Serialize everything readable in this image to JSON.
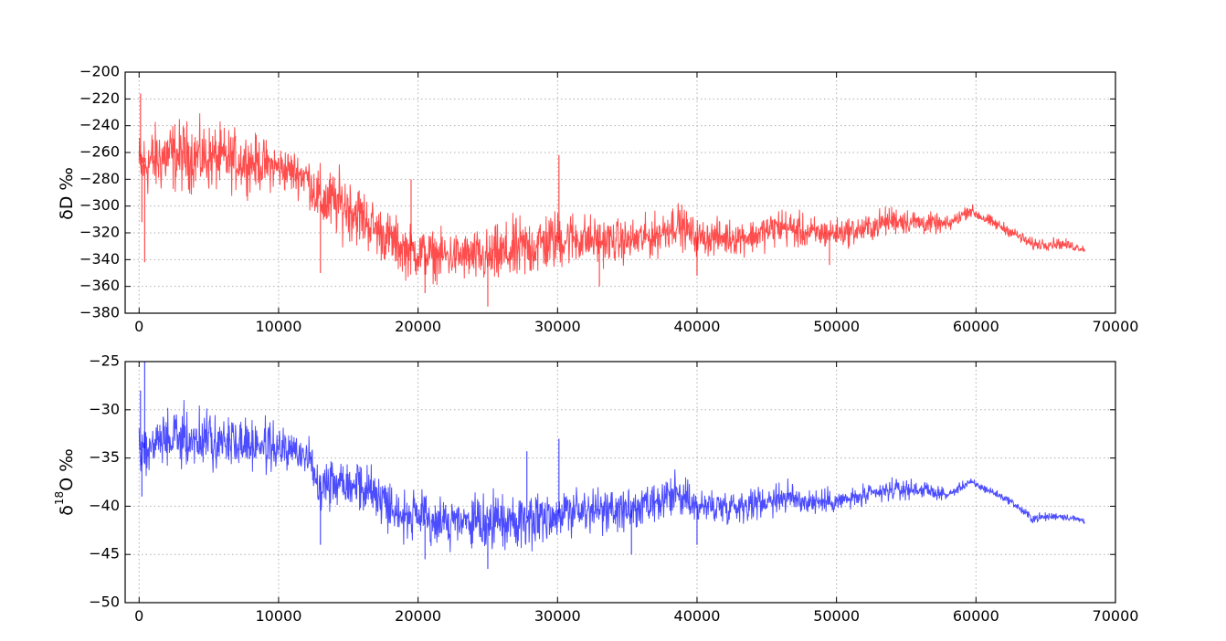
{
  "chart_data": [
    {
      "type": "line",
      "color": "#ff0000",
      "alpha": 0.7,
      "ylabel_main": "δD ‰",
      "xlim": [
        -1000,
        70000
      ],
      "ylim": [
        -380,
        -200
      ],
      "xticks": [
        "0",
        "10000",
        "20000",
        "30000",
        "40000",
        "50000",
        "60000",
        "70000"
      ],
      "yticks": [
        "−380",
        "−360",
        "−340",
        "−320",
        "−300",
        "−280",
        "−260",
        "−240",
        "−220",
        "−200"
      ],
      "grid": true,
      "x_last": 67800,
      "envelope": {
        "x": [
          0,
          2000,
          4000,
          6000,
          8000,
          10000,
          12000,
          13000,
          15000,
          17000,
          19000,
          21000,
          23000,
          25000,
          27000,
          29000,
          31000,
          33000,
          35000,
          37000,
          38500,
          40000,
          42000,
          44000,
          46000,
          48000,
          50000,
          52000,
          54000,
          56000,
          58000,
          59500,
          61000,
          62500,
          64000,
          66000,
          67800
        ],
        "upper": [
          -235,
          -225,
          -228,
          -232,
          -238,
          -248,
          -255,
          -262,
          -265,
          -290,
          -305,
          -312,
          -313,
          -310,
          -300,
          -295,
          -295,
          -302,
          -305,
          -300,
          -290,
          -305,
          -305,
          -305,
          -295,
          -303,
          -305,
          -303,
          -295,
          -300,
          -306,
          -296,
          -305,
          -313,
          -322,
          -322,
          -328
        ],
        "lower": [
          -305,
          -300,
          -298,
          -298,
          -296,
          -295,
          -300,
          -330,
          -335,
          -345,
          -360,
          -362,
          -362,
          -368,
          -368,
          -360,
          -352,
          -350,
          -348,
          -345,
          -335,
          -342,
          -342,
          -340,
          -335,
          -338,
          -335,
          -332,
          -325,
          -325,
          -322,
          -310,
          -318,
          -325,
          -335,
          -334,
          -336
        ]
      },
      "spikes": [
        {
          "x": 100,
          "y": -216
        },
        {
          "x": 200,
          "y": -312
        },
        {
          "x": 400,
          "y": -342
        },
        {
          "x": 13000,
          "y": -350
        },
        {
          "x": 19500,
          "y": -280
        },
        {
          "x": 20500,
          "y": -365
        },
        {
          "x": 25000,
          "y": -375
        },
        {
          "x": 30100,
          "y": -262
        },
        {
          "x": 33000,
          "y": -360
        },
        {
          "x": 40000,
          "y": -352
        },
        {
          "x": 49500,
          "y": -344
        }
      ]
    },
    {
      "type": "line",
      "color": "#0000ff",
      "alpha": 0.7,
      "ylabel_main": "δ",
      "ylabel_sup": "18",
      "ylabel_tail": "O ‰",
      "xlim": [
        -1000,
        70000
      ],
      "ylim": [
        -50,
        -25
      ],
      "xticks": [
        "0",
        "10000",
        "20000",
        "30000",
        "40000",
        "50000",
        "60000",
        "70000"
      ],
      "yticks": [
        "−50",
        "−45",
        "−40",
        "−35",
        "−30",
        "−25"
      ],
      "grid": true,
      "x_last": 67800,
      "envelope": {
        "x": [
          0,
          2000,
          4000,
          6000,
          8000,
          10000,
          12000,
          13000,
          15000,
          17000,
          19000,
          21000,
          23000,
          25000,
          27000,
          29000,
          31000,
          33000,
          35000,
          37000,
          38500,
          40000,
          42000,
          44000,
          46000,
          48000,
          50000,
          52000,
          54000,
          56000,
          58000,
          59500,
          61000,
          62500,
          64000,
          66000,
          67800
        ],
        "upper": [
          -30.5,
          -29.0,
          -29.0,
          -29.5,
          -30.0,
          -31.0,
          -32.0,
          -33.5,
          -33.5,
          -35.0,
          -37.5,
          -38.0,
          -38.5,
          -38.0,
          -37.5,
          -37.0,
          -37.0,
          -37.5,
          -37.5,
          -37.0,
          -35.5,
          -37.5,
          -37.5,
          -37.5,
          -36.5,
          -37.5,
          -38.0,
          -37.5,
          -36.8,
          -37.0,
          -38.2,
          -36.8,
          -37.8,
          -39.0,
          -40.5,
          -40.5,
          -41.0
        ],
        "lower": [
          -38.0,
          -37.0,
          -37.0,
          -37.0,
          -37.0,
          -37.0,
          -37.5,
          -41.5,
          -41.0,
          -42.5,
          -44.5,
          -45.0,
          -45.0,
          -45.5,
          -45.5,
          -45.0,
          -44.0,
          -43.5,
          -43.5,
          -43.0,
          -42.0,
          -42.5,
          -42.5,
          -42.0,
          -41.5,
          -41.5,
          -41.0,
          -40.5,
          -39.8,
          -39.5,
          -39.5,
          -38.2,
          -39.0,
          -40.0,
          -42.0,
          -41.5,
          -42.0
        ]
      },
      "spikes": [
        {
          "x": 100,
          "y": -28.0
        },
        {
          "x": 200,
          "y": -39.0
        },
        {
          "x": 400,
          "y": -25.0
        },
        {
          "x": 13000,
          "y": -44.0
        },
        {
          "x": 20500,
          "y": -45.5
        },
        {
          "x": 25000,
          "y": -46.5
        },
        {
          "x": 27800,
          "y": -34.3
        },
        {
          "x": 30100,
          "y": -33.0
        },
        {
          "x": 35300,
          "y": -45.0
        },
        {
          "x": 40000,
          "y": -44.0
        }
      ]
    }
  ]
}
